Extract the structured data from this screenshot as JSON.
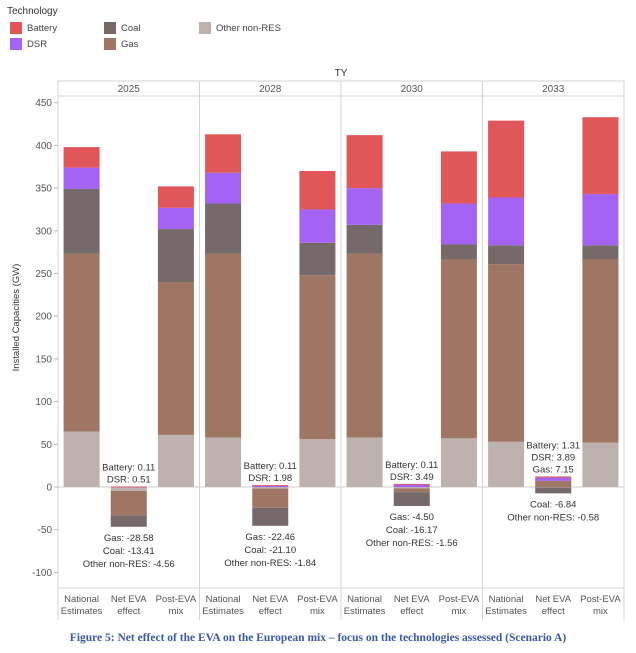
{
  "legend": {
    "title": "Technology",
    "items": [
      {
        "label": "Battery",
        "color": "#e05659"
      },
      {
        "label": "Coal",
        "color": "#76696a"
      },
      {
        "label": "Other non-RES",
        "color": "#bdb2ad"
      },
      {
        "label": "DSR",
        "color": "#a463f2"
      },
      {
        "label": "Gas",
        "color": "#9e7663"
      }
    ]
  },
  "caption": "Figure 5: Net effect of the EVA on the European mix – focus on the technologies assessed (Scenario A)",
  "chart_data": {
    "type": "bar",
    "stacked": true,
    "top_axis_title": "TY",
    "ylabel": "Installed Capacities (GW)",
    "ylim": [
      -110,
      460
    ],
    "yticks": [
      -100,
      -50,
      0,
      50,
      100,
      150,
      200,
      250,
      300,
      350,
      400,
      450
    ],
    "grid": false,
    "stack_order": [
      "Other non-RES",
      "Gas",
      "Coal",
      "DSR",
      "Battery"
    ],
    "colors": {
      "Battery": "#e05659",
      "DSR": "#a463f2",
      "Coal": "#76696a",
      "Gas": "#9e7663",
      "Other non-RES": "#bdb2ad"
    },
    "panels": [
      {
        "year": "2025",
        "bars": [
          {
            "category": "National Estimates",
            "values": {
              "Other non-RES": 65,
              "Gas": 208,
              "Coal": 76,
              "DSR": 25,
              "Battery": 24
            }
          },
          {
            "category": "Net EVA effect",
            "values": {
              "Other non-RES": -4.56,
              "Gas": -28.58,
              "Coal": -13.41,
              "DSR": 0.51,
              "Battery": 0.11
            }
          },
          {
            "category": "Post-EVA mix",
            "values": {
              "Other non-RES": 61,
              "Gas": 179,
              "Coal": 62,
              "DSR": 25,
              "Battery": 25
            }
          }
        ],
        "labels_above": [
          "Battery: 0.11",
          "DSR: 0.51"
        ],
        "labels_below": [
          "Gas: -28.58",
          "Coal: -13.41",
          "Other non-RES: -4.56"
        ]
      },
      {
        "year": "2028",
        "bars": [
          {
            "category": "National Estimates",
            "values": {
              "Other non-RES": 58,
              "Gas": 215,
              "Coal": 59,
              "DSR": 36,
              "Battery": 45
            }
          },
          {
            "category": "Net EVA effect",
            "values": {
              "Other non-RES": -1.84,
              "Gas": -22.46,
              "Coal": -21.1,
              "DSR": 1.98,
              "Battery": 0.11
            }
          },
          {
            "category": "Post-EVA mix",
            "values": {
              "Other non-RES": 56,
              "Gas": 192,
              "Coal": 38,
              "DSR": 39,
              "Battery": 45
            }
          }
        ],
        "labels_above": [
          "Battery: 0.11",
          "DSR: 1.98"
        ],
        "labels_below": [
          "Gas: -22.46",
          "Coal: -21.10",
          "Other non-RES: -1.84"
        ]
      },
      {
        "year": "2030",
        "bars": [
          {
            "category": "National Estimates",
            "values": {
              "Other non-RES": 58,
              "Gas": 215,
              "Coal": 34,
              "DSR": 43,
              "Battery": 62
            }
          },
          {
            "category": "Net EVA effect",
            "values": {
              "Other non-RES": -1.56,
              "Gas": -4.5,
              "Coal": -16.17,
              "DSR": 3.49,
              "Battery": 0.11
            }
          },
          {
            "category": "Post-EVA mix",
            "values": {
              "Other non-RES": 57,
              "Gas": 210,
              "Coal": 17,
              "DSR": 48,
              "Battery": 61
            }
          }
        ],
        "labels_above": [
          "Battery: 0.11",
          "DSR: 3.49"
        ],
        "labels_below": [
          "Gas: -4.50",
          "Coal: -16.17",
          "Other non-RES: -1.56"
        ]
      },
      {
        "year": "2033",
        "bars": [
          {
            "category": "National Estimates",
            "values": {
              "Other non-RES": 53,
              "Gas": 208,
              "Coal": 22,
              "DSR": 56,
              "Battery": 90
            }
          },
          {
            "category": "Net EVA effect",
            "values": {
              "Other non-RES": -0.58,
              "Gas": 7.15,
              "Coal": -6.84,
              "DSR": 3.89,
              "Battery": 1.31
            }
          },
          {
            "category": "Post-EVA mix",
            "values": {
              "Other non-RES": 52,
              "Gas": 215,
              "Coal": 16,
              "DSR": 60,
              "Battery": 90
            }
          }
        ],
        "labels_above": [
          "Battery: 1.31",
          "DSR: 3.89",
          "Gas: 7.15"
        ],
        "labels_below": [
          "Coal: -6.84",
          "Other non-RES: -0.58"
        ]
      }
    ]
  }
}
